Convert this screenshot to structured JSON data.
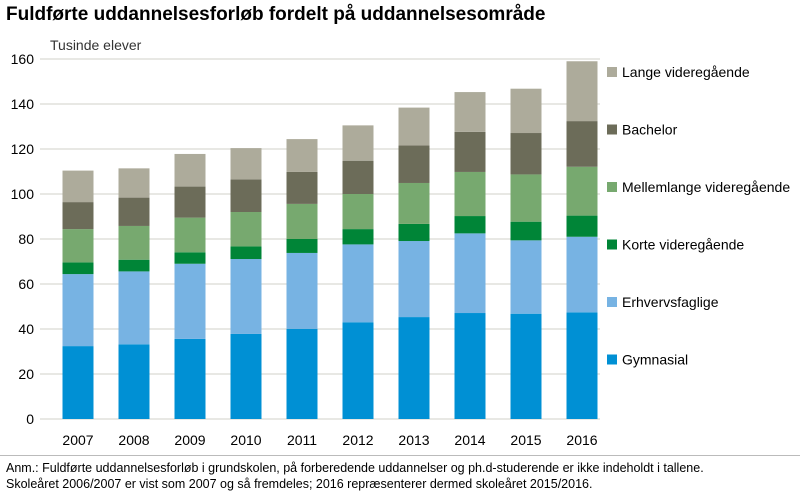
{
  "chart_data": {
    "type": "bar",
    "stacked": true,
    "title": "Fuldførte uddannelsesforløb fordelt på uddannelsesområde",
    "ylabel": "Tusinde elever",
    "xlabel": "",
    "ylim": [
      0,
      160
    ],
    "yticks": [
      0,
      20,
      40,
      60,
      80,
      100,
      120,
      140,
      160
    ],
    "grid": true,
    "legend_placement": "right",
    "categories": [
      "2007",
      "2008",
      "2009",
      "2010",
      "2011",
      "2012",
      "2013",
      "2014",
      "2015",
      "2016"
    ],
    "series": [
      {
        "name": "Gymnasial",
        "color": "#0090d4",
        "values": [
          32.4,
          33.2,
          35.6,
          37.8,
          40.1,
          43.0,
          45.3,
          47.1,
          46.8,
          47.4
        ]
      },
      {
        "name": "Erhvervsfaglige",
        "color": "#77b3e3",
        "values": [
          32.0,
          32.4,
          33.4,
          33.3,
          33.7,
          34.6,
          33.8,
          35.4,
          32.6,
          33.6
        ]
      },
      {
        "name": "Korte videregående",
        "color": "#008537",
        "values": [
          5.2,
          5.2,
          5.1,
          5.6,
          6.2,
          6.8,
          7.6,
          7.7,
          8.3,
          9.4
        ]
      },
      {
        "name": "Mellemlange videregående",
        "color": "#77a96f",
        "values": [
          14.8,
          15.0,
          15.4,
          15.3,
          15.6,
          15.6,
          18.2,
          19.6,
          21.0,
          21.7
        ]
      },
      {
        "name": "Bachelor",
        "color": "#6c6c59",
        "values": [
          12.0,
          12.6,
          13.8,
          14.5,
          14.2,
          14.8,
          16.7,
          17.8,
          18.4,
          20.3
        ]
      },
      {
        "name": "Lange videregående",
        "color": "#adab9b",
        "values": [
          14.0,
          13.0,
          14.5,
          13.9,
          14.6,
          15.7,
          16.8,
          17.7,
          19.7,
          26.6
        ]
      }
    ]
  },
  "note": {
    "line1": "Anm.: Fuldførte uddannelsesforløb i grundskolen, på forberedende uddannelser og ph.d-studerende er ikke indeholdt i tallene.",
    "line2": "Skoleåret 2006/2007 er vist som 2007 og så fremdeles; 2016 repræsenterer dermed skoleåret 2015/2016."
  }
}
